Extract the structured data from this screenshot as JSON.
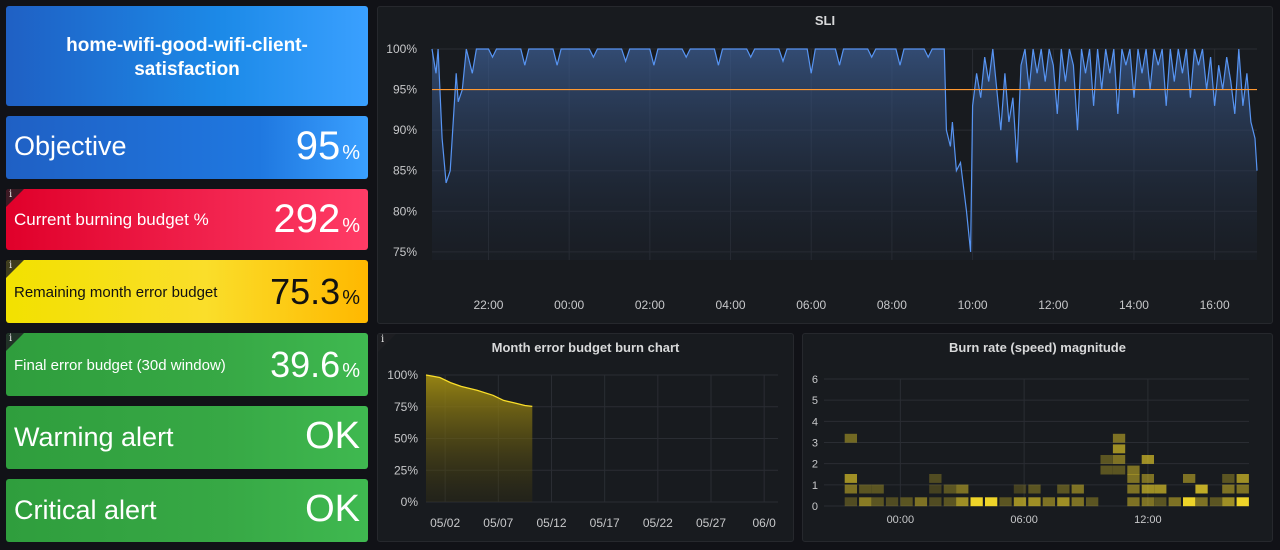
{
  "title_panel": {
    "text_line1": "home-wifi-good-wifi-client-",
    "text_line2": "satisfaction"
  },
  "stats": {
    "objective": {
      "label": "Objective",
      "value": "95",
      "unit": "%"
    },
    "burning": {
      "label": "Current burning budget %",
      "value": "292",
      "unit": "%",
      "info": "i"
    },
    "remaining": {
      "label": "Remaining month error budget",
      "value": "75.3",
      "unit": "%",
      "info": "i"
    },
    "final": {
      "label": "Final error budget (30d window)",
      "value": "39.6",
      "unit": "%",
      "info": "i"
    },
    "warning": {
      "label": "Warning alert",
      "value": "OK"
    },
    "critical": {
      "label": "Critical alert",
      "value": "OK"
    }
  },
  "colors": {
    "blue": "#1f60c4",
    "red": "#f2495c",
    "yellow": "#fade2a",
    "green": "#37872d",
    "sli_line": "#5794f2",
    "objective_line": "#ff9830",
    "budget_line": "#fade2a"
  },
  "chart_data": [
    {
      "type": "line",
      "title": "SLI",
      "y_ticks": [
        "100%",
        "95%",
        "90%",
        "85%",
        "80%",
        "75%"
      ],
      "ylim": [
        74,
        100
      ],
      "x_ticks": [
        "22:00",
        "00:00",
        "02:00",
        "04:00",
        "06:00",
        "08:00",
        "10:00",
        "12:00",
        "14:00",
        "16:00"
      ],
      "x_tick_hours": [
        22,
        24,
        26,
        28,
        30,
        32,
        34,
        36,
        38,
        40
      ],
      "xlim_hours": [
        20.6,
        41.05
      ],
      "threshold": 95,
      "series": [
        {
          "points": [
            [
              20.6,
              100
            ],
            [
              20.7,
              97
            ],
            [
              20.75,
              100
            ],
            [
              20.85,
              89
            ],
            [
              20.95,
              83.5
            ],
            [
              21.05,
              85
            ],
            [
              21.15,
              93
            ],
            [
              21.2,
              97
            ],
            [
              21.25,
              93.5
            ],
            [
              21.35,
              95
            ],
            [
              21.45,
              100
            ],
            [
              21.6,
              97
            ],
            [
              21.7,
              100
            ],
            [
              22.0,
              100
            ],
            [
              22.1,
              99
            ],
            [
              22.2,
              100
            ],
            [
              22.8,
              100
            ],
            [
              22.9,
              98
            ],
            [
              23.0,
              100
            ],
            [
              23.6,
              100
            ],
            [
              23.7,
              98
            ],
            [
              23.8,
              100
            ],
            [
              24.5,
              100
            ],
            [
              24.6,
              99
            ],
            [
              24.7,
              100
            ],
            [
              25.3,
              100
            ],
            [
              25.4,
              98.5
            ],
            [
              25.5,
              100
            ],
            [
              26.0,
              100
            ],
            [
              26.1,
              98
            ],
            [
              26.2,
              100
            ],
            [
              26.8,
              100
            ],
            [
              26.9,
              99
            ],
            [
              27.0,
              100
            ],
            [
              27.6,
              100
            ],
            [
              27.7,
              98
            ],
            [
              27.8,
              100
            ],
            [
              28.4,
              100
            ],
            [
              28.5,
              99
            ],
            [
              28.6,
              100
            ],
            [
              29.2,
              100
            ],
            [
              29.3,
              98.5
            ],
            [
              29.4,
              100
            ],
            [
              29.9,
              100
            ],
            [
              30.0,
              97
            ],
            [
              30.1,
              100
            ],
            [
              30.6,
              100
            ],
            [
              30.7,
              98
            ],
            [
              30.8,
              100
            ],
            [
              31.4,
              100
            ],
            [
              31.5,
              99
            ],
            [
              31.6,
              100
            ],
            [
              32.1,
              100
            ],
            [
              32.2,
              98
            ],
            [
              32.3,
              100
            ],
            [
              32.8,
              100
            ],
            [
              32.9,
              99
            ],
            [
              33.0,
              100
            ],
            [
              33.3,
              100
            ],
            [
              33.35,
              90
            ],
            [
              33.45,
              88
            ],
            [
              33.5,
              91
            ],
            [
              33.6,
              85
            ],
            [
              33.7,
              86
            ],
            [
              33.75,
              84
            ],
            [
              33.85,
              80
            ],
            [
              33.95,
              75
            ],
            [
              34.0,
              93
            ],
            [
              34.1,
              97
            ],
            [
              34.2,
              94
            ],
            [
              34.3,
              99
            ],
            [
              34.4,
              96
            ],
            [
              34.5,
              100
            ],
            [
              34.6,
              95
            ],
            [
              34.7,
              90
            ],
            [
              34.8,
              97
            ],
            [
              34.9,
              91
            ],
            [
              35.0,
              94
            ],
            [
              35.1,
              86
            ],
            [
              35.2,
              98
            ],
            [
              35.3,
              100
            ],
            [
              35.4,
              95
            ],
            [
              35.5,
              100
            ],
            [
              35.6,
              97
            ],
            [
              35.7,
              100
            ],
            [
              35.8,
              96
            ],
            [
              35.9,
              100
            ],
            [
              36.0,
              98
            ],
            [
              36.1,
              92
            ],
            [
              36.2,
              100
            ],
            [
              36.3,
              96
            ],
            [
              36.4,
              100
            ],
            [
              36.5,
              98
            ],
            [
              36.6,
              90
            ],
            [
              36.7,
              100
            ],
            [
              36.8,
              97
            ],
            [
              36.9,
              100
            ],
            [
              37.0,
              93
            ],
            [
              37.1,
              100
            ],
            [
              37.2,
              95
            ],
            [
              37.3,
              100
            ],
            [
              37.4,
              97
            ],
            [
              37.5,
              100
            ],
            [
              37.6,
              92
            ],
            [
              37.7,
              100
            ],
            [
              37.8,
              98
            ],
            [
              37.9,
              100
            ],
            [
              38.0,
              94
            ],
            [
              38.1,
              100
            ],
            [
              38.2,
              97
            ],
            [
              38.3,
              100
            ],
            [
              38.4,
              95
            ],
            [
              38.5,
              100
            ],
            [
              38.6,
              98
            ],
            [
              38.7,
              100
            ],
            [
              38.8,
              93
            ],
            [
              38.9,
              100
            ],
            [
              39.0,
              96
            ],
            [
              39.1,
              100
            ],
            [
              39.2,
              97
            ],
            [
              39.3,
              100
            ],
            [
              39.4,
              94
            ],
            [
              39.5,
              100
            ],
            [
              39.6,
              98
            ],
            [
              39.7,
              100
            ],
            [
              39.8,
              95
            ],
            [
              39.9,
              99
            ],
            [
              40.0,
              93
            ],
            [
              40.1,
              98
            ],
            [
              40.2,
              95
            ],
            [
              40.3,
              99
            ],
            [
              40.4,
              96
            ],
            [
              40.5,
              92
            ],
            [
              40.6,
              100
            ],
            [
              40.7,
              93
            ],
            [
              40.8,
              97
            ],
            [
              40.9,
              91
            ],
            [
              41.0,
              89
            ],
            [
              41.05,
              85
            ]
          ]
        }
      ]
    },
    {
      "type": "area",
      "title": "Month error budget burn chart",
      "info": "i",
      "y_ticks": [
        "100%",
        "75%",
        "50%",
        "25%",
        "0%"
      ],
      "ylim": [
        0,
        100
      ],
      "x_ticks": [
        "05/02",
        "05/07",
        "05/12",
        "05/17",
        "05/22",
        "05/27",
        "06/0"
      ],
      "x_tick_days": [
        2,
        7,
        12,
        17,
        22,
        27,
        32
      ],
      "xlim_days": [
        0.2,
        33.3
      ],
      "series": [
        {
          "points": [
            [
              0.2,
              100
            ],
            [
              1.5,
              98
            ],
            [
              2.5,
              94
            ],
            [
              3.5,
              91
            ],
            [
              5,
              88
            ],
            [
              6.5,
              84
            ],
            [
              7.5,
              80
            ],
            [
              8.5,
              78
            ],
            [
              9.5,
              76
            ],
            [
              10.2,
              75.3
            ]
          ]
        }
      ]
    },
    {
      "type": "heatmap",
      "title": "Burn rate (speed) magnitude",
      "y_ticks": [
        "6",
        "5",
        "4",
        "3",
        "2",
        "1",
        "0"
      ],
      "ylim": [
        0,
        6
      ],
      "x_ticks": [
        "00:00",
        "06:00",
        "12:00"
      ],
      "x_tick_hours": [
        24,
        30,
        36
      ],
      "xlim_hours": [
        20.3,
        40.9
      ],
      "bucket_hours": 0.67,
      "cells": [
        [
          21.6,
          3.2,
          0.4
        ],
        [
          21.6,
          1.3,
          0.6
        ],
        [
          21.6,
          0.8,
          0.45
        ],
        [
          21.6,
          0.2,
          0.25
        ],
        [
          22.3,
          0.8,
          0.3
        ],
        [
          22.3,
          0.2,
          0.5
        ],
        [
          22.9,
          0.8,
          0.3
        ],
        [
          22.9,
          0.2,
          0.3
        ],
        [
          23.6,
          0.2,
          0.25
        ],
        [
          24.3,
          0.2,
          0.3
        ],
        [
          25.0,
          0.2,
          0.45
        ],
        [
          25.7,
          0.8,
          0.2
        ],
        [
          25.7,
          1.3,
          0.25
        ],
        [
          25.7,
          0.2,
          0.25
        ],
        [
          26.4,
          0.8,
          0.3
        ],
        [
          26.4,
          0.2,
          0.3
        ],
        [
          27.0,
          0.8,
          0.45
        ],
        [
          27.0,
          0.2,
          0.6
        ],
        [
          27.7,
          0.2,
          0.95
        ],
        [
          28.4,
          0.2,
          0.95
        ],
        [
          29.1,
          0.2,
          0.3
        ],
        [
          29.8,
          0.8,
          0.2
        ],
        [
          29.8,
          0.2,
          0.6
        ],
        [
          30.5,
          0.8,
          0.3
        ],
        [
          30.5,
          0.2,
          0.6
        ],
        [
          31.2,
          0.2,
          0.45
        ],
        [
          31.9,
          0.8,
          0.3
        ],
        [
          31.9,
          0.2,
          0.6
        ],
        [
          32.6,
          0.8,
          0.45
        ],
        [
          32.6,
          0.2,
          0.45
        ],
        [
          33.3,
          0.2,
          0.3
        ],
        [
          34.0,
          2.2,
          0.3
        ],
        [
          34.0,
          1.7,
          0.3
        ],
        [
          34.6,
          3.2,
          0.45
        ],
        [
          34.6,
          2.7,
          0.6
        ],
        [
          34.6,
          2.2,
          0.45
        ],
        [
          34.6,
          1.7,
          0.3
        ],
        [
          35.3,
          1.7,
          0.45
        ],
        [
          35.3,
          1.3,
          0.45
        ],
        [
          35.3,
          0.8,
          0.45
        ],
        [
          35.3,
          0.2,
          0.45
        ],
        [
          36.0,
          2.2,
          0.6
        ],
        [
          36.0,
          1.3,
          0.45
        ],
        [
          36.0,
          0.8,
          0.6
        ],
        [
          36.0,
          0.2,
          0.45
        ],
        [
          36.6,
          0.8,
          0.6
        ],
        [
          36.6,
          0.2,
          0.3
        ],
        [
          37.3,
          0.2,
          0.45
        ],
        [
          38.0,
          0.2,
          0.95
        ],
        [
          38.0,
          1.3,
          0.45
        ],
        [
          38.6,
          0.8,
          0.75
        ],
        [
          38.6,
          0.2,
          0.45
        ],
        [
          39.3,
          0.2,
          0.3
        ],
        [
          39.9,
          1.3,
          0.3
        ],
        [
          39.9,
          0.8,
          0.45
        ],
        [
          39.9,
          0.2,
          0.6
        ],
        [
          40.6,
          1.3,
          0.6
        ],
        [
          40.6,
          0.8,
          0.45
        ],
        [
          40.6,
          0.2,
          0.95
        ],
        [
          41.3,
          1.3,
          0.45
        ],
        [
          41.3,
          0.8,
          0.3
        ],
        [
          41.3,
          0.2,
          0.45
        ],
        [
          42.0,
          1.7,
          0.6
        ],
        [
          42.0,
          1.3,
          0.45
        ],
        [
          42.0,
          0.8,
          0.45
        ],
        [
          42.0,
          0.2,
          0.45
        ],
        [
          42.6,
          1.7,
          0.45
        ],
        [
          42.6,
          0.8,
          0.45
        ],
        [
          42.6,
          0.2,
          0.45
        ]
      ]
    }
  ]
}
